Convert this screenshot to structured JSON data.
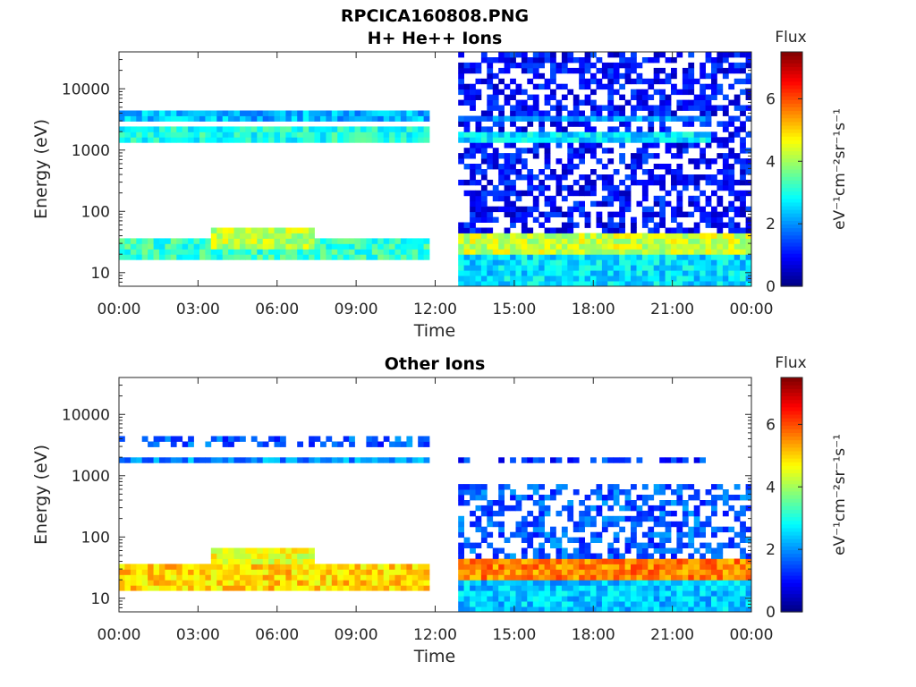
{
  "figure": {
    "title": "RPCICA160808.PNG"
  },
  "colors": {
    "jet": [
      "#00007f",
      "#0000ff",
      "#007fff",
      "#00ffff",
      "#7fff7f",
      "#ffff00",
      "#ff7f00",
      "#ff0000",
      "#7f0000"
    ]
  },
  "chart_data": [
    {
      "type": "heatmap",
      "title": "H+ He++ Ions",
      "xlabel": "Time",
      "ylabel": "Energy (eV)",
      "x_ticks": [
        "00:00",
        "03:00",
        "06:00",
        "09:00",
        "12:00",
        "15:00",
        "18:00",
        "21:00",
        "00:00"
      ],
      "x_range_hours": [
        0,
        24
      ],
      "y_scale": "log",
      "y_ticks": [
        "10",
        "100",
        "1000",
        "10000"
      ],
      "y_range_eV": [
        6,
        40000
      ],
      "colorbar": {
        "label": "Flux",
        "unit": "eV⁻¹cm⁻²sr⁻¹s⁻¹",
        "ticks": [
          "0",
          "2",
          "4",
          "6"
        ],
        "range": [
          0,
          7.5
        ]
      },
      "data_gaps_hours": [
        [
          11.8,
          12.95
        ]
      ],
      "bands": [
        {
          "from_h": 0,
          "to_h": 11.8,
          "e_low": 18,
          "e_high": 40,
          "flux": 3.2
        },
        {
          "from_h": 3.5,
          "to_h": 7.5,
          "e_low": 25,
          "e_high": 55,
          "flux": 4.2
        },
        {
          "from_h": 0,
          "to_h": 11.8,
          "e_low": 1300,
          "e_high": 2200,
          "flux": 3.0
        },
        {
          "from_h": 0,
          "to_h": 11.8,
          "e_low": 2900,
          "e_high": 4300,
          "flux": 2.3
        },
        {
          "from_h": 12.95,
          "to_h": 24,
          "e_low": 6,
          "e_high": 22,
          "flux": 2.6
        },
        {
          "from_h": 12.95,
          "to_h": 24,
          "e_low": 22,
          "e_high": 42,
          "flux": 4.3
        },
        {
          "from_h": 12.95,
          "to_h": 24,
          "e_low": 42,
          "e_high": 40000,
          "flux": 1.0
        },
        {
          "from_h": 12.95,
          "to_h": 22.5,
          "e_low": 1400,
          "e_high": 2000,
          "flux": 2.6
        },
        {
          "from_h": 12.95,
          "to_h": 22.5,
          "e_low": 3000,
          "e_high": 4000,
          "flux": 2.0
        }
      ]
    },
    {
      "type": "heatmap",
      "title": "Other Ions",
      "xlabel": "Time",
      "ylabel": "Energy (eV)",
      "x_ticks": [
        "00:00",
        "03:00",
        "06:00",
        "09:00",
        "12:00",
        "15:00",
        "18:00",
        "21:00",
        "00:00"
      ],
      "x_range_hours": [
        0,
        24
      ],
      "y_scale": "log",
      "y_ticks": [
        "10",
        "100",
        "1000",
        "10000"
      ],
      "y_range_eV": [
        6,
        40000
      ],
      "colorbar": {
        "label": "Flux",
        "unit": "eV⁻¹cm⁻²sr⁻¹s⁻¹",
        "ticks": [
          "0",
          "2",
          "4",
          "6"
        ],
        "range": [
          0,
          7.5
        ]
      },
      "data_gaps_hours": [
        [
          11.8,
          12.95
        ]
      ],
      "bands": [
        {
          "from_h": 0,
          "to_h": 11.8,
          "e_low": 14,
          "e_high": 40,
          "flux": 5.0
        },
        {
          "from_h": 3.5,
          "to_h": 7.5,
          "e_low": 30,
          "e_high": 65,
          "flux": 4.5
        },
        {
          "from_h": 0,
          "to_h": 11.8,
          "e_low": 1500,
          "e_high": 1900,
          "flux": 2.0
        },
        {
          "from_h": 0,
          "to_h": 11.8,
          "e_low": 3200,
          "e_high": 4200,
          "flux": 1.6
        },
        {
          "from_h": 12.95,
          "to_h": 24,
          "e_low": 6,
          "e_high": 20,
          "flux": 2.4
        },
        {
          "from_h": 12.95,
          "to_h": 24,
          "e_low": 20,
          "e_high": 42,
          "flux": 5.6
        },
        {
          "from_h": 12.95,
          "to_h": 24,
          "e_low": 42,
          "e_high": 700,
          "flux": 1.6
        },
        {
          "from_h": 12.95,
          "to_h": 22.5,
          "e_low": 1500,
          "e_high": 1900,
          "flux": 1.3
        }
      ]
    }
  ]
}
